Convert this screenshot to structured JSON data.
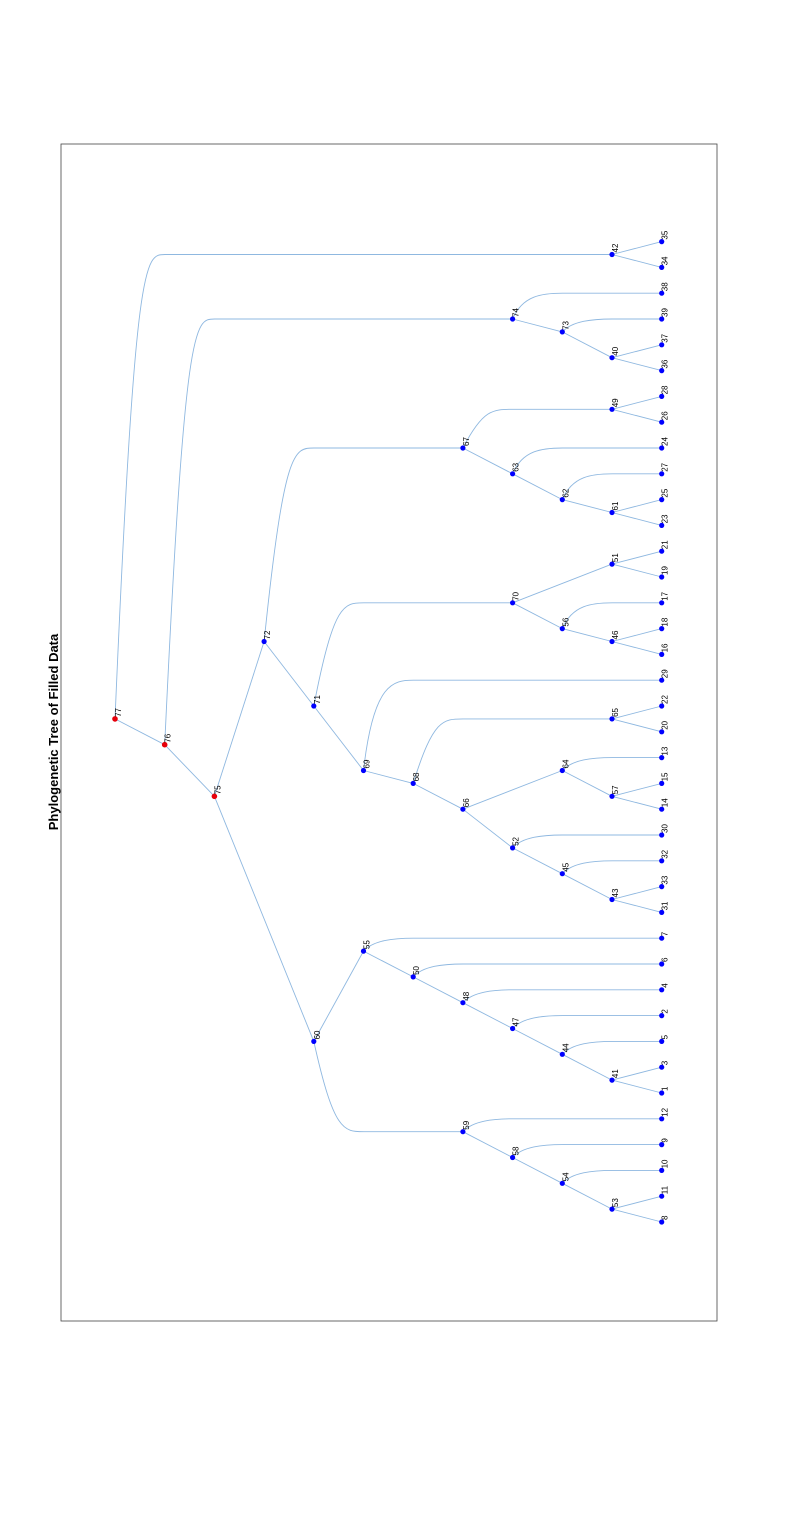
{
  "title": "Phylogenetic Tree of Filled Data",
  "colors": {
    "internal_node": "#0000ff",
    "root_node": "#e8000b",
    "edge": "#8fb8e0",
    "frame": "#444444"
  },
  "tree": {
    "nodes": [
      {
        "id": "1",
        "depth": 11,
        "pos": 1
      },
      {
        "id": "3",
        "depth": 11,
        "pos": 2
      },
      {
        "id": "5",
        "depth": 11,
        "pos": 3
      },
      {
        "id": "2",
        "depth": 11,
        "pos": 4
      },
      {
        "id": "4",
        "depth": 11,
        "pos": 5
      },
      {
        "id": "6",
        "depth": 11,
        "pos": 6
      },
      {
        "id": "7",
        "depth": 11,
        "pos": 7
      },
      {
        "id": "8",
        "depth": 11,
        "pos": -4
      },
      {
        "id": "11",
        "depth": 11,
        "pos": -3
      },
      {
        "id": "10",
        "depth": 11,
        "pos": -2
      },
      {
        "id": "9",
        "depth": 11,
        "pos": -1
      },
      {
        "id": "12",
        "depth": 11,
        "pos": 0
      },
      {
        "id": "31",
        "depth": 11,
        "pos": 8
      },
      {
        "id": "33",
        "depth": 11,
        "pos": 9
      },
      {
        "id": "32",
        "depth": 11,
        "pos": 10
      },
      {
        "id": "30",
        "depth": 11,
        "pos": 11
      },
      {
        "id": "14",
        "depth": 11,
        "pos": 12
      },
      {
        "id": "15",
        "depth": 11,
        "pos": 13
      },
      {
        "id": "13",
        "depth": 11,
        "pos": 14
      },
      {
        "id": "20",
        "depth": 11,
        "pos": 15
      },
      {
        "id": "22",
        "depth": 11,
        "pos": 16
      },
      {
        "id": "29",
        "depth": 11,
        "pos": 17
      },
      {
        "id": "16",
        "depth": 11,
        "pos": 18
      },
      {
        "id": "18",
        "depth": 11,
        "pos": 19
      },
      {
        "id": "17",
        "depth": 11,
        "pos": 20
      },
      {
        "id": "19",
        "depth": 11,
        "pos": 21
      },
      {
        "id": "21",
        "depth": 11,
        "pos": 22
      },
      {
        "id": "23",
        "depth": 11,
        "pos": 23
      },
      {
        "id": "25",
        "depth": 11,
        "pos": 24
      },
      {
        "id": "27",
        "depth": 11,
        "pos": 25
      },
      {
        "id": "24",
        "depth": 11,
        "pos": 26
      },
      {
        "id": "26",
        "depth": 11,
        "pos": 27
      },
      {
        "id": "28",
        "depth": 11,
        "pos": 28
      },
      {
        "id": "36",
        "depth": 11,
        "pos": 29
      },
      {
        "id": "37",
        "depth": 11,
        "pos": 30
      },
      {
        "id": "39",
        "depth": 11,
        "pos": 31
      },
      {
        "id": "38",
        "depth": 11,
        "pos": 32
      },
      {
        "id": "34",
        "depth": 11,
        "pos": 33
      },
      {
        "id": "35",
        "depth": 11,
        "pos": 34
      },
      {
        "id": "41",
        "depth": 10,
        "pos": 1.5,
        "parent_of": [
          "1",
          "3"
        ]
      },
      {
        "id": "44",
        "depth": 9,
        "pos": 2.5,
        "parent_of": [
          "41",
          "5"
        ]
      },
      {
        "id": "47",
        "depth": 8,
        "pos": 3.5,
        "parent_of": [
          "44",
          "2"
        ]
      },
      {
        "id": "48",
        "depth": 7,
        "pos": 4.5,
        "parent_of": [
          "47",
          "4"
        ]
      },
      {
        "id": "50",
        "depth": 6,
        "pos": 5.5,
        "parent_of": [
          "48",
          "6"
        ]
      },
      {
        "id": "55",
        "depth": 5,
        "pos": 6.5,
        "parent_of": [
          "50",
          "7"
        ]
      },
      {
        "id": "53",
        "depth": 10,
        "pos": -3.5,
        "parent_of": [
          "8",
          "11"
        ]
      },
      {
        "id": "54",
        "depth": 9,
        "pos": -2.5,
        "parent_of": [
          "53",
          "10"
        ]
      },
      {
        "id": "58",
        "depth": 8,
        "pos": -1.5,
        "parent_of": [
          "54",
          "9"
        ]
      },
      {
        "id": "59",
        "depth": 7,
        "pos": -0.5,
        "parent_of": [
          "58",
          "12"
        ]
      },
      {
        "id": "60",
        "depth": 4,
        "pos": 3,
        "parent_of": [
          "55",
          "59"
        ]
      },
      {
        "id": "43",
        "depth": 10,
        "pos": 8.5,
        "parent_of": [
          "31",
          "33"
        ]
      },
      {
        "id": "45",
        "depth": 9,
        "pos": 9.5,
        "parent_of": [
          "43",
          "32"
        ]
      },
      {
        "id": "52",
        "depth": 8,
        "pos": 10.5,
        "parent_of": [
          "45",
          "30"
        ]
      },
      {
        "id": "57",
        "depth": 10,
        "pos": 12.5,
        "parent_of": [
          "14",
          "15"
        ]
      },
      {
        "id": "64",
        "depth": 9,
        "pos": 13.5,
        "parent_of": [
          "57",
          "13"
        ]
      },
      {
        "id": "66",
        "depth": 7,
        "pos": 12,
        "parent_of": [
          "52",
          "64"
        ]
      },
      {
        "id": "65",
        "depth": 10,
        "pos": 15.5,
        "parent_of": [
          "20",
          "22"
        ]
      },
      {
        "id": "68",
        "depth": 6,
        "pos": 13,
        "parent_of": [
          "66",
          "65"
        ]
      },
      {
        "id": "69",
        "depth": 5,
        "pos": 13.5,
        "parent_of": [
          "68",
          "29"
        ]
      },
      {
        "id": "46",
        "depth": 10,
        "pos": 18.5,
        "parent_of": [
          "16",
          "18"
        ]
      },
      {
        "id": "56",
        "depth": 9,
        "pos": 19,
        "parent_of": [
          "46",
          "17"
        ]
      },
      {
        "id": "51",
        "depth": 10,
        "pos": 21.5,
        "parent_of": [
          "19",
          "21"
        ]
      },
      {
        "id": "70",
        "depth": 8,
        "pos": 20,
        "parent_of": [
          "56",
          "51"
        ]
      },
      {
        "id": "71",
        "depth": 4,
        "pos": 16,
        "parent_of": [
          "69",
          "70"
        ]
      },
      {
        "id": "61",
        "depth": 10,
        "pos": 23.5,
        "parent_of": [
          "23",
          "25"
        ]
      },
      {
        "id": "62",
        "depth": 9,
        "pos": 24,
        "parent_of": [
          "61",
          "27"
        ]
      },
      {
        "id": "63",
        "depth": 8,
        "pos": 25,
        "parent_of": [
          "62",
          "24"
        ]
      },
      {
        "id": "49",
        "depth": 10,
        "pos": 27.5,
        "parent_of": [
          "26",
          "28"
        ]
      },
      {
        "id": "67",
        "depth": 7,
        "pos": 26,
        "parent_of": [
          "63",
          "49"
        ]
      },
      {
        "id": "72",
        "depth": 3,
        "pos": 18.5,
        "parent_of": [
          "71",
          "67"
        ]
      },
      {
        "id": "75",
        "depth": 2,
        "pos": 12.5,
        "parent_of": [
          "60",
          "72"
        ]
      },
      {
        "id": "40",
        "depth": 10,
        "pos": 29.5,
        "parent_of": [
          "36",
          "37"
        ]
      },
      {
        "id": "73",
        "depth": 9,
        "pos": 30.5,
        "parent_of": [
          "40",
          "39"
        ]
      },
      {
        "id": "74",
        "depth": 8,
        "pos": 31,
        "parent_of": [
          "73",
          "38"
        ]
      },
      {
        "id": "76",
        "depth": 1,
        "pos": 14.5,
        "parent_of": [
          "75",
          "74"
        ]
      },
      {
        "id": "42",
        "depth": 10,
        "pos": 33.5,
        "parent_of": [
          "34",
          "35"
        ]
      },
      {
        "id": "77",
        "depth": 0,
        "pos": 15.5,
        "parent_of": [
          "76",
          "42"
        ]
      }
    ],
    "root_nodes": [
      "75",
      "76",
      "77"
    ]
  }
}
